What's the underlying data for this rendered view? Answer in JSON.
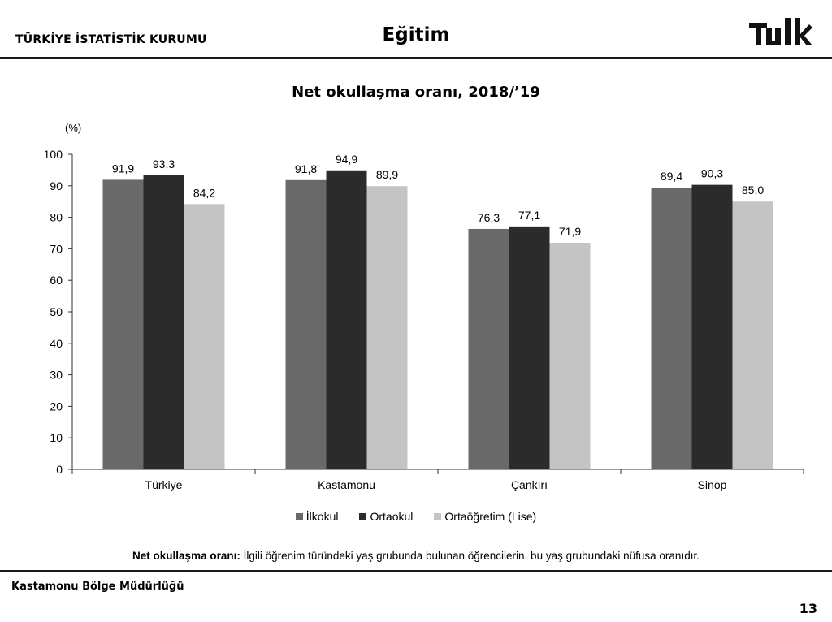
{
  "header": {
    "org_name": "TÜRKİYE İSTATİSTİK KURUMU",
    "section_title": "Eğitim",
    "logo_text": "TÜİK"
  },
  "chart_data": {
    "type": "bar",
    "title": "Net okullaşma oranı, 2018/’19",
    "unit_label": "(%)",
    "categories": [
      "Türkiye",
      "Kastamonu",
      "Çankırı",
      "Sinop"
    ],
    "series": [
      {
        "name": "İlkokul",
        "values": [
          91.9,
          91.8,
          76.3,
          89.4
        ],
        "labels": [
          "91,9",
          "91,8",
          "76,3",
          "89,4"
        ],
        "color": "#696969"
      },
      {
        "name": "Ortaokul",
        "values": [
          93.3,
          94.9,
          77.1,
          90.3
        ],
        "labels": [
          "93,3",
          "94,9",
          "77,1",
          "90,3"
        ],
        "color": "#2b2b2b"
      },
      {
        "name": "Ortaöğretim (Lise)",
        "values": [
          84.2,
          89.9,
          71.9,
          85.0
        ],
        "labels": [
          "84,2",
          "89,9",
          "71,9",
          "85,0"
        ],
        "color": "#c4c4c4"
      }
    ],
    "ylim": [
      0,
      100
    ],
    "yticks": [
      0,
      10,
      20,
      30,
      40,
      50,
      60,
      70,
      80,
      90,
      100
    ],
    "grid": false,
    "legend": "bottom"
  },
  "note": {
    "term": "Net okullaşma oranı:",
    "definition": " İlgili öğrenim türündeki yaş grubunda bulunan öğrencilerin, bu yaş grubundaki nüfusa oranıdır."
  },
  "footer": {
    "office": "Kastamonu Bölge Müdürlüğü",
    "page_number": "13"
  }
}
